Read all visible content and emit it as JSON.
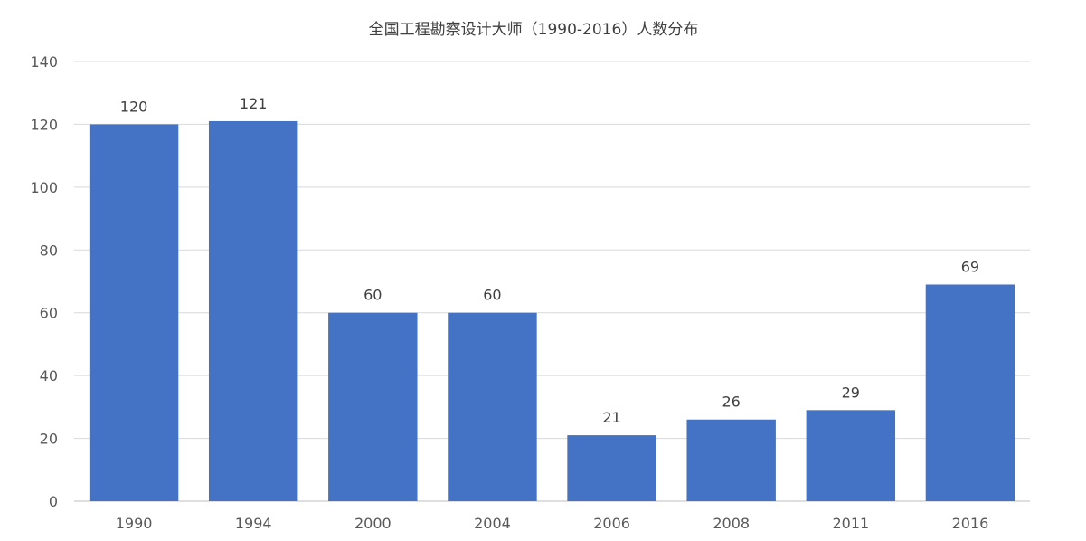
{
  "chart_data": {
    "type": "bar",
    "title": "全国工程勘察设计大师（1990-2016）人数分布",
    "xlabel": "",
    "ylabel": "",
    "categories": [
      "1990",
      "1994",
      "2000",
      "2004",
      "2006",
      "2008",
      "2011",
      "2016"
    ],
    "values": [
      120,
      121,
      60,
      60,
      21,
      26,
      29,
      69
    ],
    "ylim": [
      0,
      140
    ],
    "yticks": [
      0,
      20,
      40,
      60,
      80,
      100,
      120,
      140
    ],
    "grid": true,
    "legend": "none",
    "bar_color": "#4472C4",
    "data_labels": true
  }
}
